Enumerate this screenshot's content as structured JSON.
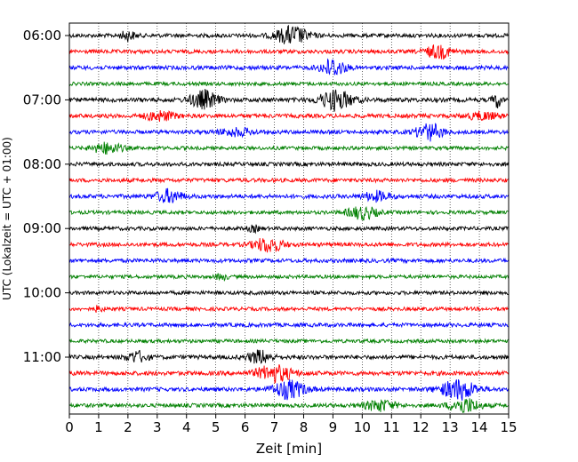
{
  "chart_data": {
    "type": "line",
    "subtype": "helicorder",
    "title": "",
    "xlabel": "Zeit  [min]",
    "ylabel": "UTC (Lokalzeit = UTC + 01:00)",
    "xlim": [
      0,
      15
    ],
    "x_ticks": [
      "0",
      "1",
      "2",
      "3",
      "4",
      "5",
      "6",
      "7",
      "8",
      "9",
      "10",
      "11",
      "12",
      "13",
      "14",
      "15"
    ],
    "y_tick_labels": [
      "06:00",
      "07:00",
      "08:00",
      "09:00",
      "10:00",
      "11:00"
    ],
    "row_interval_min": 15,
    "rows": [
      {
        "start": "06:00",
        "color": "#000000",
        "noise": 2.2,
        "events": [
          [
            2.0,
            5,
            0.25
          ],
          [
            7.6,
            10,
            0.55
          ]
        ]
      },
      {
        "start": "06:15",
        "color": "#ff0000",
        "noise": 2.2,
        "events": [
          [
            12.6,
            7,
            0.45
          ]
        ]
      },
      {
        "start": "06:30",
        "color": "#0000ff",
        "noise": 2.3,
        "events": [
          [
            9.0,
            10,
            0.4
          ]
        ]
      },
      {
        "start": "06:45",
        "color": "#008000",
        "noise": 2.0,
        "events": []
      },
      {
        "start": "07:00",
        "color": "#000000",
        "noise": 2.4,
        "events": [
          [
            4.6,
            10,
            0.45
          ],
          [
            9.1,
            11,
            0.55
          ],
          [
            14.6,
            8,
            0.15
          ]
        ]
      },
      {
        "start": "07:15",
        "color": "#ff0000",
        "noise": 2.3,
        "events": [
          [
            3.1,
            5,
            0.5
          ],
          [
            14.1,
            4,
            0.5
          ]
        ]
      },
      {
        "start": "07:30",
        "color": "#0000ff",
        "noise": 2.2,
        "events": [
          [
            5.7,
            4,
            0.6
          ],
          [
            12.3,
            9,
            0.45
          ]
        ]
      },
      {
        "start": "07:45",
        "color": "#008000",
        "noise": 2.0,
        "events": [
          [
            1.3,
            6,
            0.5
          ]
        ]
      },
      {
        "start": "08:00",
        "color": "#000000",
        "noise": 2.2,
        "events": []
      },
      {
        "start": "08:15",
        "color": "#ff0000",
        "noise": 2.2,
        "events": []
      },
      {
        "start": "08:30",
        "color": "#0000ff",
        "noise": 2.3,
        "events": [
          [
            3.4,
            7,
            0.45
          ],
          [
            10.5,
            5,
            0.45
          ]
        ]
      },
      {
        "start": "08:45",
        "color": "#008000",
        "noise": 2.0,
        "events": [
          [
            10.0,
            7,
            0.5
          ]
        ]
      },
      {
        "start": "09:00",
        "color": "#000000",
        "noise": 2.1,
        "events": [
          [
            6.3,
            3,
            0.2
          ]
        ]
      },
      {
        "start": "09:15",
        "color": "#ff0000",
        "noise": 2.2,
        "events": [
          [
            6.8,
            8,
            0.5
          ]
        ]
      },
      {
        "start": "09:30",
        "color": "#0000ff",
        "noise": 2.2,
        "events": []
      },
      {
        "start": "09:45",
        "color": "#008000",
        "noise": 2.0,
        "events": [
          [
            5.2,
            3,
            0.2
          ]
        ]
      },
      {
        "start": "10:00",
        "color": "#000000",
        "noise": 2.1,
        "events": []
      },
      {
        "start": "10:15",
        "color": "#ff0000",
        "noise": 2.0,
        "events": [
          [
            1.0,
            3,
            0.15
          ]
        ]
      },
      {
        "start": "10:30",
        "color": "#0000ff",
        "noise": 2.2,
        "events": []
      },
      {
        "start": "10:45",
        "color": "#008000",
        "noise": 2.0,
        "events": []
      },
      {
        "start": "11:00",
        "color": "#000000",
        "noise": 2.3,
        "events": [
          [
            2.3,
            6,
            0.35
          ],
          [
            6.5,
            7,
            0.4
          ]
        ]
      },
      {
        "start": "11:15",
        "color": "#ff0000",
        "noise": 2.4,
        "events": [
          [
            7.0,
            9,
            0.6
          ]
        ]
      },
      {
        "start": "11:30",
        "color": "#0000ff",
        "noise": 2.3,
        "events": [
          [
            7.5,
            10,
            0.55
          ],
          [
            13.3,
            11,
            0.6
          ]
        ]
      },
      {
        "start": "11:45",
        "color": "#008000",
        "noise": 2.2,
        "events": [
          [
            10.6,
            6,
            0.5
          ],
          [
            13.5,
            8,
            0.5
          ]
        ]
      }
    ],
    "grid": "vertical dotted"
  }
}
